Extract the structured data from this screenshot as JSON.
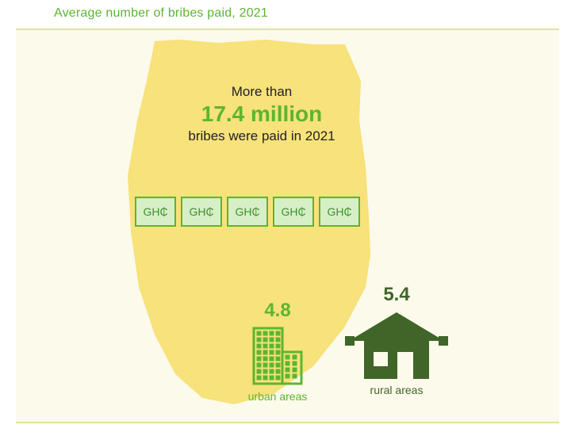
{
  "title": "Average number of bribes paid, 2021",
  "colors": {
    "title": "#5cb531",
    "divider": "#d9e69a",
    "canvas_bg": "#fcfaea",
    "map_fill": "#f7e27b",
    "box_fill": "#d6efc7",
    "box_border": "#5cb531",
    "box_text": "#3f8f2e",
    "urban": "#5cb531",
    "rural": "#3f6529",
    "headline_accent": "#5cb531"
  },
  "headline": {
    "line1": "More than",
    "line2": "17.4 million",
    "line3": "bribes were paid in 2021"
  },
  "currency_label": "GH₵",
  "currency_count": 5,
  "urban": {
    "value": "4.8",
    "label": "urban areas"
  },
  "rural": {
    "value": "5.4",
    "label": "rural areas"
  }
}
